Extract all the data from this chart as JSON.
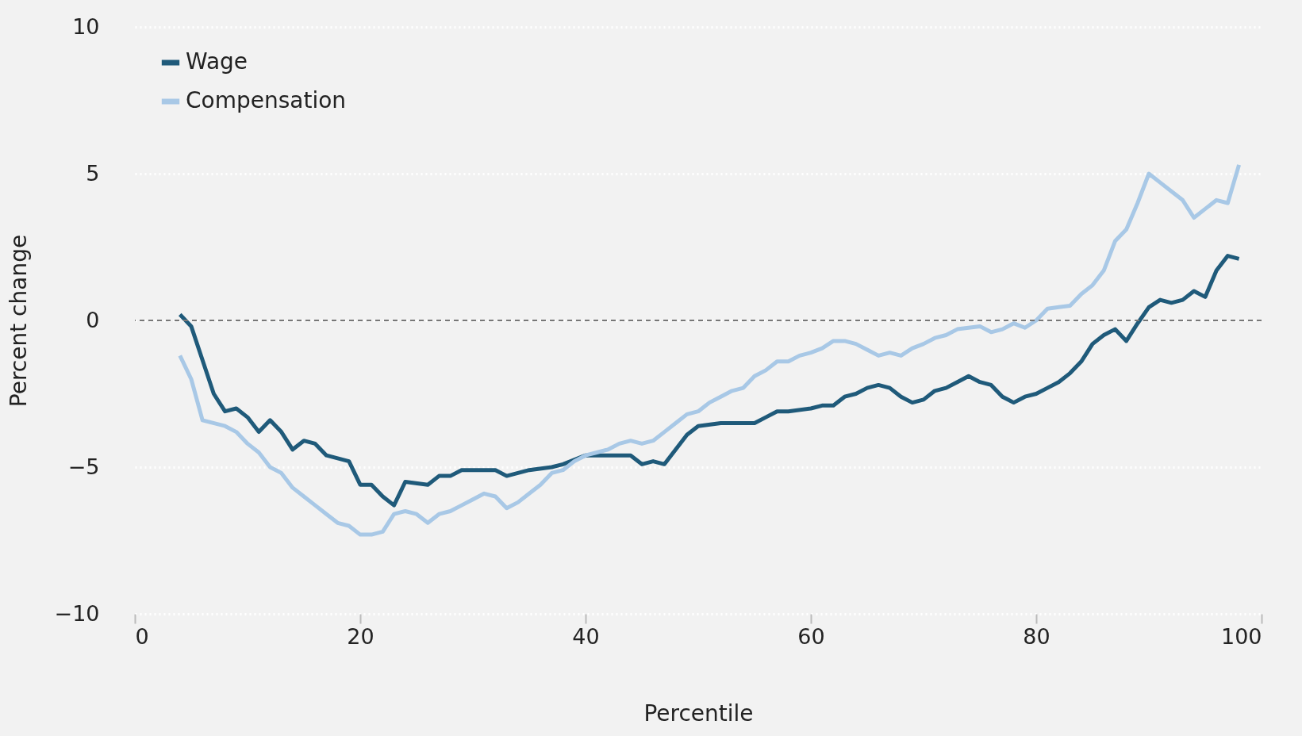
{
  "chart_data": {
    "type": "line",
    "xlabel": "Percentile",
    "ylabel": "Percent change",
    "xlim": [
      0,
      100
    ],
    "xticks": [
      0,
      20,
      40,
      60,
      80,
      100
    ],
    "ylim": [
      -10,
      10
    ],
    "yticks": [
      -10,
      -5,
      0,
      5,
      10
    ],
    "grid": "y",
    "legend": "top left",
    "line_style": "solid",
    "ref_lines": [
      {
        "axis": "y",
        "value": 0,
        "label": null,
        "color": "#777777",
        "line_style": "dashed"
      }
    ],
    "series": [
      {
        "name": "Wage",
        "color": "#1f5a7a",
        "x": [
          4,
          5,
          7,
          8,
          9,
          10,
          11,
          12,
          13,
          14,
          15,
          16,
          17,
          19,
          20,
          21,
          22,
          23,
          24,
          26,
          27,
          28,
          29,
          31,
          32,
          33,
          35,
          37,
          38,
          40,
          42,
          44,
          45,
          46,
          47,
          48,
          49,
          50,
          52,
          55,
          56,
          57,
          58,
          60,
          61,
          62,
          63,
          64,
          65,
          66,
          67,
          68,
          69,
          70,
          71,
          72,
          73,
          74,
          75,
          76,
          77,
          78,
          79,
          80,
          81,
          82,
          83,
          84,
          85,
          86,
          87,
          88,
          89,
          90,
          91,
          92,
          93,
          94,
          95,
          96,
          97,
          98
        ],
        "values": [
          0.2,
          -0.2,
          -2.5,
          -3.1,
          -3.0,
          -3.3,
          -3.8,
          -3.4,
          -3.8,
          -4.4,
          -4.1,
          -4.2,
          -4.6,
          -4.8,
          -5.6,
          -5.6,
          -6.0,
          -6.3,
          -5.5,
          -5.6,
          -5.3,
          -5.3,
          -5.1,
          -5.1,
          -5.1,
          -5.3,
          -5.1,
          -5.0,
          -4.9,
          -4.6,
          -4.6,
          -4.6,
          -4.9,
          -4.8,
          -4.9,
          -4.4,
          -3.9,
          -3.6,
          -3.5,
          -3.5,
          -3.3,
          -3.1,
          -3.1,
          -3.0,
          -2.9,
          -2.9,
          -2.6,
          -2.5,
          -2.3,
          -2.2,
          -2.3,
          -2.6,
          -2.8,
          -2.7,
          -2.4,
          -2.3,
          -2.1,
          -1.9,
          -2.1,
          -2.2,
          -2.6,
          -2.8,
          -2.6,
          -2.5,
          -2.3,
          -2.1,
          -1.8,
          -1.4,
          -0.8,
          -0.5,
          -0.3,
          -0.7,
          -0.1,
          0.45,
          0.7,
          0.6,
          0.7,
          1.0,
          0.8,
          1.7,
          2.2,
          2.1
        ]
      },
      {
        "name": "Compensation",
        "color": "#a8c8e6",
        "x": [
          4,
          5,
          6,
          8,
          9,
          10,
          11,
          12,
          13,
          14,
          15,
          16,
          17,
          18,
          19,
          20,
          21,
          22,
          23,
          24,
          25,
          26,
          27,
          28,
          29,
          30,
          31,
          32,
          33,
          34,
          35,
          36,
          37,
          38,
          39,
          40,
          41,
          42,
          43,
          44,
          45,
          46,
          47,
          48,
          49,
          50,
          51,
          52,
          53,
          54,
          55,
          56,
          57,
          58,
          59,
          60,
          61,
          62,
          63,
          64,
          65,
          66,
          67,
          68,
          69,
          70,
          71,
          72,
          73,
          74,
          75,
          76,
          77,
          78,
          79,
          80,
          81,
          82,
          83,
          84,
          85,
          86,
          87,
          88,
          89,
          90,
          91,
          92,
          93,
          94,
          95,
          96,
          97,
          98
        ],
        "values": [
          -1.2,
          -2.0,
          -3.4,
          -3.6,
          -3.8,
          -4.2,
          -4.5,
          -5.0,
          -5.2,
          -5.7,
          -6.0,
          -6.3,
          -6.6,
          -6.9,
          -7.0,
          -7.3,
          -7.3,
          -7.2,
          -6.6,
          -6.5,
          -6.6,
          -6.9,
          -6.6,
          -6.5,
          -6.3,
          -6.1,
          -5.9,
          -6.0,
          -6.4,
          -6.2,
          -5.9,
          -5.6,
          -5.2,
          -5.1,
          -4.8,
          -4.6,
          -4.5,
          -4.4,
          -4.2,
          -4.1,
          -4.2,
          -4.1,
          -3.8,
          -3.5,
          -3.2,
          -3.1,
          -2.8,
          -2.6,
          -2.4,
          -2.3,
          -1.9,
          -1.7,
          -1.4,
          -1.4,
          -1.2,
          -1.1,
          -0.95,
          -0.7,
          -0.7,
          -0.8,
          -1.0,
          -1.2,
          -1.1,
          -1.2,
          -0.95,
          -0.8,
          -0.6,
          -0.5,
          -0.3,
          -0.25,
          -0.2,
          -0.4,
          -0.3,
          -0.1,
          -0.25,
          0.0,
          0.4,
          0.45,
          0.5,
          0.9,
          1.2,
          1.7,
          2.7,
          3.1,
          4.0,
          5.0,
          4.7,
          4.4,
          4.1,
          3.5,
          3.8,
          4.1,
          4.0,
          5.3
        ]
      }
    ]
  }
}
